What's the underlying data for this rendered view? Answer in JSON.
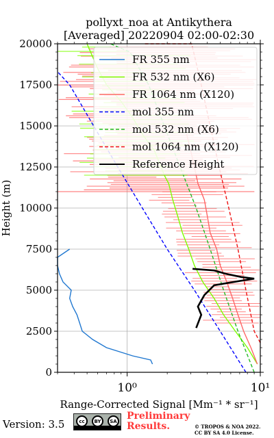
{
  "chart_data": {
    "type": "line",
    "title": "pollyxt_noa at Antikythera",
    "subtitle": "[Averaged] 20220904 02:00-02:30",
    "xlabel": "Range-Corrected Signal [Mm⁻¹ * sr⁻¹]",
    "ylabel": "Height (m)",
    "xscale": "log",
    "xlim": [
      0.3,
      10
    ],
    "ylim": [
      0,
      20000
    ],
    "xticks": [
      {
        "value": 1,
        "label": "10⁰"
      },
      {
        "value": 10,
        "label": "10¹"
      }
    ],
    "yticks": [
      0,
      2500,
      5000,
      7500,
      10000,
      12500,
      15000,
      17500,
      20000
    ],
    "grid": true,
    "legend_position": "top-right",
    "series": [
      {
        "name": "FR 355 nm",
        "color": "#1f77d0",
        "style": "solid",
        "x": [
          1.55,
          1.5,
          1.1,
          0.7,
          0.55,
          0.46,
          0.44,
          0.42,
          0.39,
          0.37,
          0.38,
          0.33,
          0.31,
          0.3,
          0.3,
          0.37
        ],
        "y": [
          500,
          750,
          1000,
          1500,
          2000,
          2500,
          3000,
          3500,
          4000,
          4500,
          5000,
          5500,
          6000,
          6500,
          7000,
          7500
        ]
      },
      {
        "name": "FR 532 nm (X6)",
        "color": "#7fff00",
        "style": "solid",
        "x": [
          9.5,
          8.0,
          6.5,
          5.3,
          4.5,
          3.7,
          3.2,
          2.9,
          2.6,
          2.4,
          2.2,
          2.05,
          1.9,
          1.8,
          1.6,
          1.3,
          1.1,
          0.9,
          0.7,
          0.6,
          0.5
        ],
        "y": [
          500,
          1500,
          2500,
          3500,
          4500,
          5500,
          6500,
          7500,
          8500,
          9500,
          10500,
          11500,
          12000,
          12500,
          13500,
          14500,
          15500,
          16500,
          17500,
          18500,
          20000
        ]
      },
      {
        "name": "FR 1064 nm (X120)",
        "color": "#ff6666",
        "style": "solid",
        "x": [
          9.5,
          8.5,
          7.5,
          6.8,
          6.2,
          5.6,
          5.0,
          4.7,
          4.2,
          4.0,
          3.8,
          3.4,
          3.2,
          3.0,
          2.8
        ],
        "y": [
          500,
          1500,
          2500,
          3500,
          4500,
          5500,
          6500,
          7500,
          8500,
          9500,
          10500,
          11500,
          12500,
          13500,
          14500
        ]
      },
      {
        "name": "mol 355 nm",
        "color": "#0000ff",
        "style": "dashed",
        "x": [
          7.8,
          5.0,
          3.2,
          2.0,
          1.3,
          0.85,
          0.56,
          0.37,
          0.3
        ],
        "y": [
          0,
          2500,
          5000,
          7500,
          10000,
          12500,
          15000,
          17500,
          18300
        ]
      },
      {
        "name": "mol 532 nm (X6)",
        "color": "#22bb22",
        "style": "dashed",
        "x": [
          9.0,
          6.8,
          5.3,
          4.2,
          3.3,
          2.5,
          1.9,
          1.45,
          1.05,
          0.75
        ],
        "y": [
          0,
          2500,
          5000,
          7500,
          10000,
          12500,
          15000,
          17500,
          19500,
          20000
        ]
      },
      {
        "name": "mol 1064 nm (X120)",
        "color": "#ee1111",
        "style": "dashed",
        "x": [
          10.0,
          9.0,
          7.8,
          6.8,
          5.8,
          4.9,
          4.2,
          3.6,
          3.05,
          2.55,
          2.1,
          1.72,
          1.35
        ],
        "y": [
          1800,
          2500,
          5000,
          7500,
          10000,
          12500,
          15000,
          17500,
          20000,
          20000,
          20000,
          20000,
          20000
        ]
      },
      {
        "name": "Reference Height",
        "color": "#000000",
        "style": "solid",
        "x": [
          3.1,
          4.5,
          5.5,
          7.2,
          9.0,
          7.5,
          5.8,
          4.5,
          3.8,
          3.4,
          3.6,
          3.3
        ],
        "y": [
          6300,
          6200,
          6000,
          5800,
          5700,
          5600,
          5450,
          5300,
          4700,
          4000,
          3500,
          2700
        ]
      }
    ]
  },
  "footer": {
    "version": "Version: 3.5",
    "preliminary_line1": "Preliminary",
    "preliminary_line2": "Results.",
    "copyright_line1": "© TROPOS & NOA 2022.",
    "copyright_line2": "CC BY SA 4.0 License.",
    "license_badge": {
      "label_by": "BY",
      "label_sa": "SA",
      "icons": [
        "cc-icon",
        "by-icon",
        "sa-icon"
      ]
    }
  }
}
